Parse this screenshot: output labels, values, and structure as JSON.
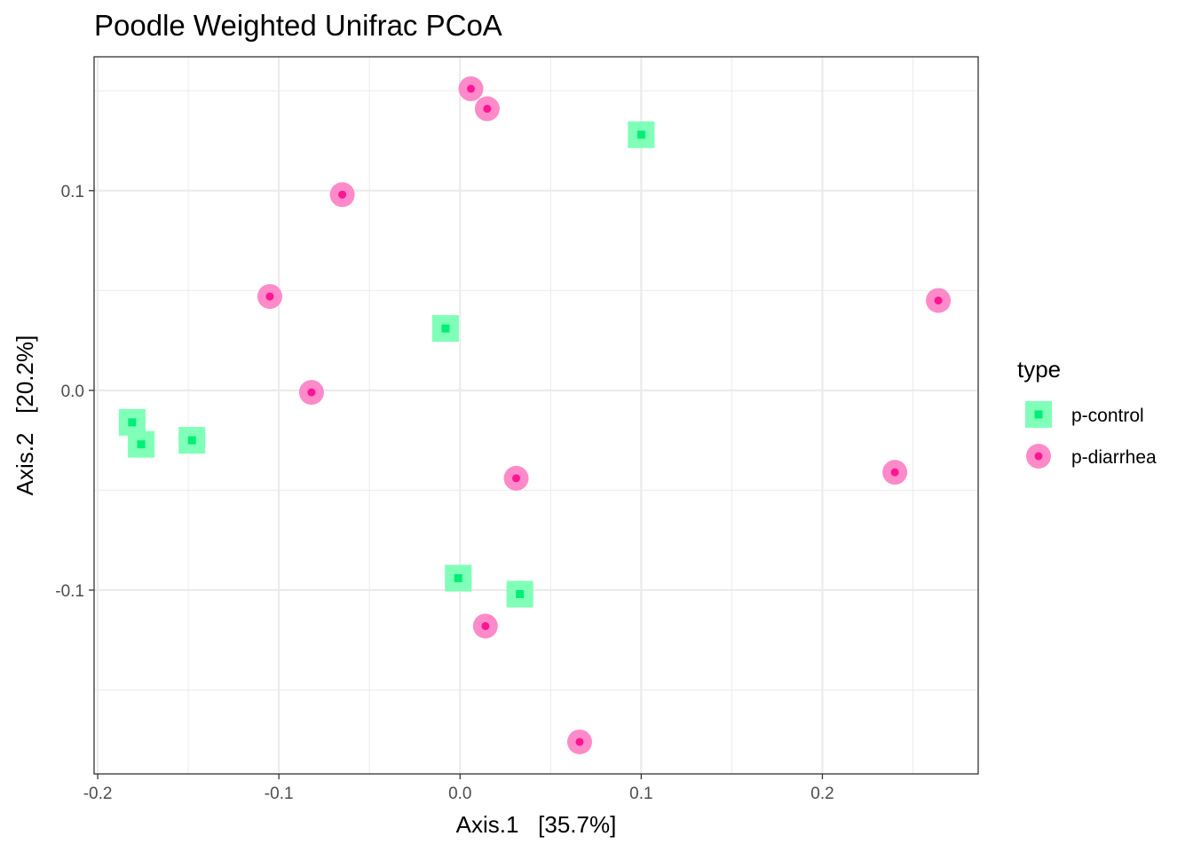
{
  "chart_data": {
    "type": "scatter",
    "title": "Poodle Weighted Unifrac PCoA",
    "xlabel": "Axis.1   [35.7%]",
    "ylabel": "Axis.2   [20.2%]",
    "xlim": [
      -0.202,
      0.286
    ],
    "ylim": [
      -0.192,
      0.167
    ],
    "xticks": [
      -0.2,
      -0.1,
      0.0,
      0.1,
      0.2
    ],
    "xtick_labels": [
      "-0.2",
      "-0.1",
      "0.0",
      "0.1",
      "0.2"
    ],
    "yticks": [
      -0.1,
      0.0,
      0.1
    ],
    "ytick_labels": [
      "-0.1",
      "0.0",
      "0.1"
    ],
    "grid": true,
    "legend_title": "type",
    "legend_position": "right",
    "series": [
      {
        "name": "p-control",
        "color": "#00ee76",
        "halo_color": "#7fffb8",
        "shape": "square",
        "points": [
          {
            "x": 0.1,
            "y": 0.128
          },
          {
            "x": -0.008,
            "y": 0.031
          },
          {
            "x": -0.181,
            "y": -0.016
          },
          {
            "x": -0.176,
            "y": -0.027
          },
          {
            "x": -0.148,
            "y": -0.025
          },
          {
            "x": -0.001,
            "y": -0.094
          },
          {
            "x": 0.033,
            "y": -0.102
          }
        ]
      },
      {
        "name": "p-diarrhea",
        "color": "#ff1493",
        "halo_color": "#ff8ac9",
        "shape": "circle",
        "points": [
          {
            "x": 0.006,
            "y": 0.151
          },
          {
            "x": 0.015,
            "y": 0.141
          },
          {
            "x": -0.065,
            "y": 0.098
          },
          {
            "x": -0.105,
            "y": 0.047
          },
          {
            "x": 0.264,
            "y": 0.045
          },
          {
            "x": -0.082,
            "y": -0.001
          },
          {
            "x": 0.031,
            "y": -0.044
          },
          {
            "x": 0.24,
            "y": -0.041
          },
          {
            "x": 0.014,
            "y": -0.118
          },
          {
            "x": 0.066,
            "y": -0.176
          }
        ]
      }
    ]
  }
}
